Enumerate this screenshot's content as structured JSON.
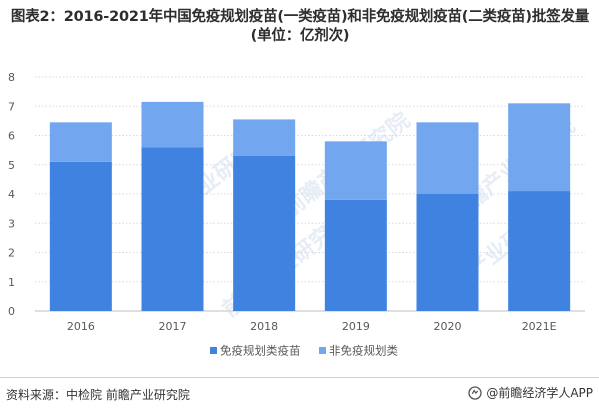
{
  "title": "图表2：2016-2021年中国免疫规划疫苗(一类疫苗)和非免疫规划疫苗(二类疫苗)批签发量(单位：亿剂次)",
  "watermark": "前瞻产业研究院",
  "source": "资料来源：中检院 前瞻产业研究院",
  "brand": "@前瞻经济学人APP",
  "colors": {
    "series1": "#3f82e0",
    "series2": "#72a6ee",
    "grid": "#d9d9d9",
    "text": "#595959",
    "axis": "#bfbfbf"
  },
  "chart_data": {
    "type": "bar",
    "stacked": true,
    "categories": [
      "2016",
      "2017",
      "2018",
      "2019",
      "2020",
      "2021E"
    ],
    "series": [
      {
        "name": "免疫规划类疫苗",
        "values": [
          5.1,
          5.6,
          5.3,
          3.8,
          4.0,
          4.1
        ]
      },
      {
        "name": "非免疫规划类",
        "values": [
          1.35,
          1.55,
          1.25,
          2.0,
          2.45,
          3.0
        ]
      }
    ],
    "ylim": [
      0,
      8
    ],
    "yticks": [
      0,
      1,
      2,
      3,
      4,
      5,
      6,
      7,
      8
    ],
    "grid": true,
    "legend": "bottom"
  }
}
